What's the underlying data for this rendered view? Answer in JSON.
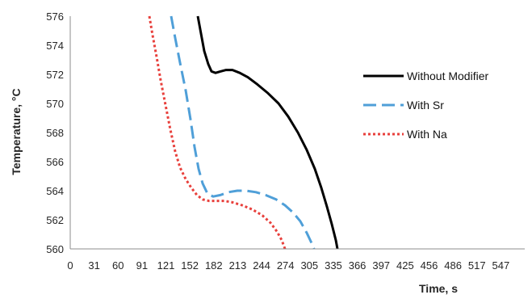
{
  "chart_data": {
    "type": "line",
    "title": "",
    "xlabel": "Time, s",
    "ylabel": "Temperature, °C",
    "xlim": [
      0,
      563
    ],
    "ylim": [
      560,
      576
    ],
    "x_ticks": [
      "0",
      "31",
      "60",
      "91",
      "121",
      "152",
      "182",
      "213",
      "244",
      "274",
      "305",
      "335",
      "366",
      "397",
      "425",
      "456",
      "486",
      "517",
      "547"
    ],
    "y_ticks": [
      "560",
      "562",
      "564",
      "566",
      "568",
      "570",
      "572",
      "574",
      "576"
    ],
    "grid": false,
    "legend_position": "right",
    "series": [
      {
        "name": "Without Modifier",
        "color": "#000000",
        "style": "solid",
        "points": [
          [
            158,
            576
          ],
          [
            162,
            574.8
          ],
          [
            166,
            573.6
          ],
          [
            171,
            572.7
          ],
          [
            175,
            572.2
          ],
          [
            180,
            572.1
          ],
          [
            186,
            572.2
          ],
          [
            193,
            572.3
          ],
          [
            201,
            572.3
          ],
          [
            210,
            572.1
          ],
          [
            220,
            571.8
          ],
          [
            232,
            571.3
          ],
          [
            245,
            570.7
          ],
          [
            258,
            570.0
          ],
          [
            270,
            569.1
          ],
          [
            282,
            568.0
          ],
          [
            293,
            566.8
          ],
          [
            303,
            565.5
          ],
          [
            311,
            564.2
          ],
          [
            318,
            562.9
          ],
          [
            324,
            561.7
          ],
          [
            329,
            560.6
          ],
          [
            331,
            560
          ]
        ]
      },
      {
        "name": "With Sr",
        "color": "#4f9fd8",
        "style": "dashed",
        "points": [
          [
            125,
            576
          ],
          [
            130,
            574.5
          ],
          [
            136,
            572.8
          ],
          [
            143,
            570.9
          ],
          [
            149,
            568.9
          ],
          [
            154,
            567.0
          ],
          [
            159,
            565.5
          ],
          [
            164,
            564.5
          ],
          [
            170,
            563.8
          ],
          [
            177,
            563.6
          ],
          [
            186,
            563.7
          ],
          [
            196,
            563.9
          ],
          [
            207,
            564.0
          ],
          [
            218,
            564.0
          ],
          [
            230,
            563.9
          ],
          [
            242,
            563.7
          ],
          [
            255,
            563.4
          ],
          [
            266,
            563.0
          ],
          [
            276,
            562.5
          ],
          [
            285,
            561.9
          ],
          [
            293,
            561.1
          ],
          [
            299,
            560.4
          ],
          [
            302,
            560
          ]
        ]
      },
      {
        "name": "With Na",
        "color": "#e8403c",
        "style": "dotted",
        "points": [
          [
            98,
            576
          ],
          [
            102,
            574.7
          ],
          [
            107,
            573.2
          ],
          [
            112,
            571.6
          ],
          [
            118,
            569.9
          ],
          [
            124,
            568.2
          ],
          [
            130,
            566.7
          ],
          [
            136,
            565.6
          ],
          [
            143,
            564.8
          ],
          [
            150,
            564.2
          ],
          [
            157,
            563.7
          ],
          [
            164,
            563.4
          ],
          [
            172,
            563.3
          ],
          [
            181,
            563.3
          ],
          [
            191,
            563.3
          ],
          [
            201,
            563.2
          ],
          [
            213,
            563.0
          ],
          [
            226,
            562.7
          ],
          [
            238,
            562.3
          ],
          [
            248,
            561.8
          ],
          [
            256,
            561.2
          ],
          [
            262,
            560.6
          ],
          [
            266,
            560
          ]
        ]
      }
    ]
  }
}
